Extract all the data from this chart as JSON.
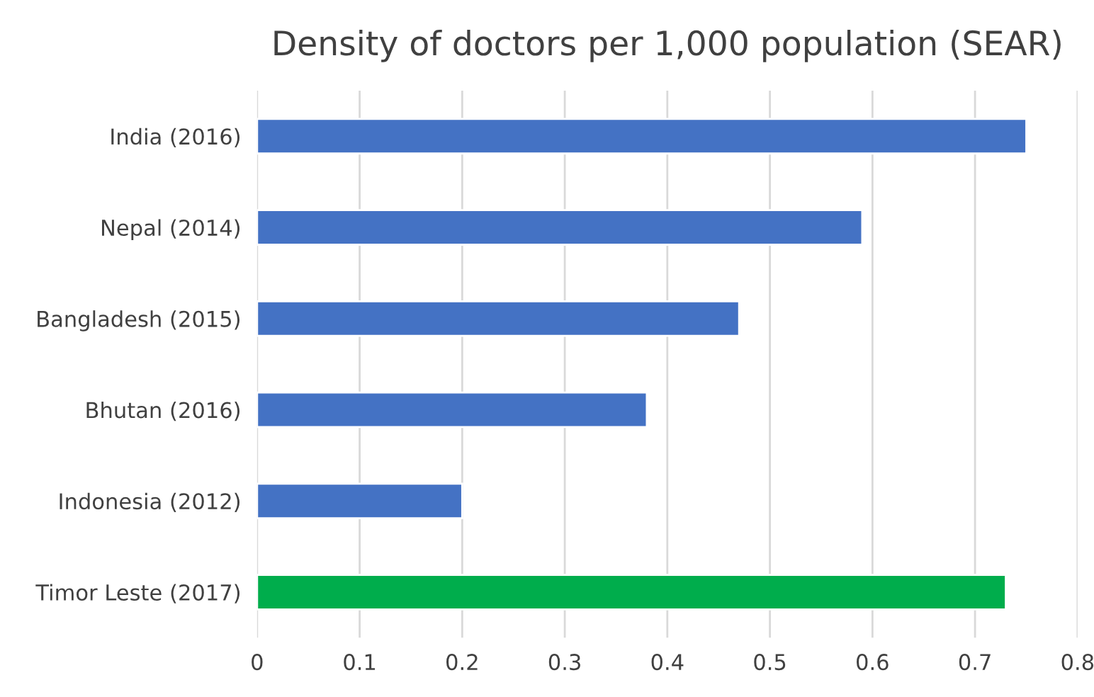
{
  "chart_data": {
    "type": "bar",
    "orientation": "horizontal",
    "title": "Density of doctors per 1,000 population (SEAR)",
    "categories": [
      "India (2016)",
      "Nepal (2014)",
      "Bangladesh (2015)",
      "Bhutan (2016)",
      "Indonesia (2012)",
      "Timor Leste (2017)"
    ],
    "values": [
      0.75,
      0.59,
      0.47,
      0.38,
      0.2,
      0.73
    ],
    "colors": [
      "#4472c4",
      "#4472c4",
      "#4472c4",
      "#4472c4",
      "#4472c4",
      "#00ad4c"
    ],
    "xlim": [
      0,
      0.8
    ],
    "xticks": [
      0,
      0.1,
      0.2,
      0.3,
      0.4,
      0.5,
      0.6,
      0.7,
      0.8
    ],
    "grid": "x"
  }
}
